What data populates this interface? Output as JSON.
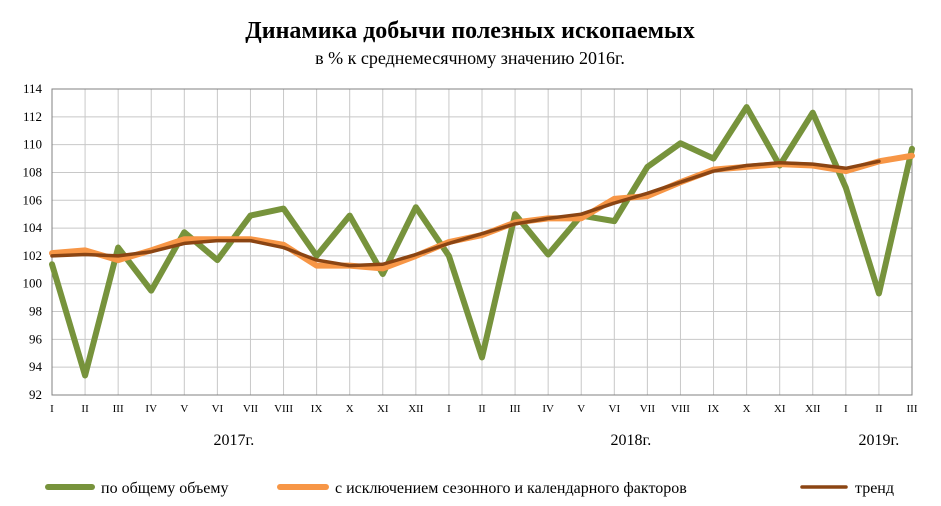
{
  "chart_data": {
    "type": "line",
    "title": "Динамика добычи полезных ископаемых",
    "subtitle": "в % к среднемесячному значению 2016г.",
    "xlabel": "",
    "ylabel": "",
    "ylim": [
      92,
      114
    ],
    "yticks": [
      92,
      94,
      96,
      98,
      100,
      102,
      104,
      106,
      108,
      110,
      112,
      114
    ],
    "grid": true,
    "legend_position": "bottom",
    "categories": [
      "I",
      "II",
      "III",
      "IV",
      "V",
      "VI",
      "VII",
      "VIII",
      "IX",
      "X",
      "XI",
      "XII",
      "I",
      "II",
      "III",
      "IV",
      "V",
      "VI",
      "VII",
      "VIII",
      "IX",
      "X",
      "XI",
      "XII",
      "I",
      "II",
      "III"
    ],
    "year_labels": [
      {
        "label": "2017г.",
        "from_index": 0,
        "to_index": 11
      },
      {
        "label": "2018г.",
        "from_index": 12,
        "to_index": 23
      },
      {
        "label": "2019г.",
        "from_index": 24,
        "to_index": 26
      }
    ],
    "series": [
      {
        "name": "по общему объему",
        "color": "#77933c",
        "values": [
          101.4,
          93.4,
          102.6,
          99.5,
          103.7,
          101.7,
          104.9,
          105.4,
          102.0,
          104.9,
          100.7,
          105.5,
          102.0,
          94.7,
          105.0,
          102.1,
          104.9,
          104.5,
          108.4,
          110.1,
          109.0,
          112.7,
          108.5,
          112.3,
          106.9,
          99.3,
          109.7
        ]
      },
      {
        "name": "с исключением сезонного и календарного факторов",
        "color": "#f79646",
        "values": [
          102.2,
          102.4,
          101.7,
          102.4,
          103.2,
          103.2,
          103.2,
          102.8,
          101.3,
          101.3,
          101.1,
          102.0,
          103.0,
          103.5,
          104.4,
          104.7,
          104.7,
          106.1,
          106.3,
          107.3,
          108.2,
          108.4,
          108.6,
          108.5,
          108.1,
          108.8,
          109.2
        ]
      },
      {
        "name": "тренд",
        "color": "#8b4513",
        "values": [
          102.0,
          102.1,
          102.0,
          102.3,
          102.9,
          103.1,
          103.1,
          102.6,
          101.7,
          101.3,
          101.4,
          102.1,
          102.9,
          103.6,
          104.3,
          104.7,
          105.0,
          105.8,
          106.5,
          107.3,
          108.1,
          108.5,
          108.7,
          108.6,
          108.3,
          108.8,
          null
        ]
      }
    ]
  }
}
